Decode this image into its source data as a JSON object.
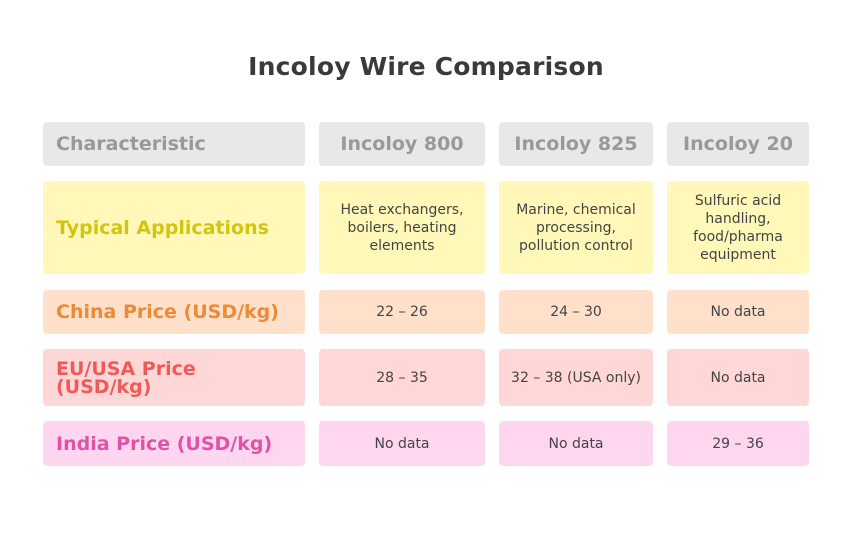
{
  "title": "Incoloy Wire Comparison",
  "header": [
    "Characteristic",
    "Incoloy 800",
    "Incoloy 825",
    "Incoloy 20"
  ],
  "rows": [
    {
      "label": "Typical Applications",
      "values": [
        "Heat exchangers, boilers, heating elements",
        "Marine, chemical processing, pollution control",
        "Sulfuric acid handling, food/pharma equipment"
      ]
    },
    {
      "label": "China Price (USD/kg)",
      "values": [
        "22 – 26",
        "24 – 30",
        "No data"
      ]
    },
    {
      "label": "EU/USA Price (USD/kg)",
      "values": [
        "28 – 35",
        "32 – 38 (USA only)",
        "No data"
      ]
    },
    {
      "label": "India Price (USD/kg)",
      "values": [
        "No data",
        "No data",
        "29 – 36"
      ]
    }
  ],
  "colors": {
    "header_bg": "#e8e8e8",
    "row_bg": [
      "#fff8b8",
      "#ffe0cb",
      "#ffd7d7",
      "#ffd6ef"
    ],
    "label_text": [
      "#d3c40f",
      "#ec8a36",
      "#ee5a5a",
      "#e052a8"
    ]
  }
}
